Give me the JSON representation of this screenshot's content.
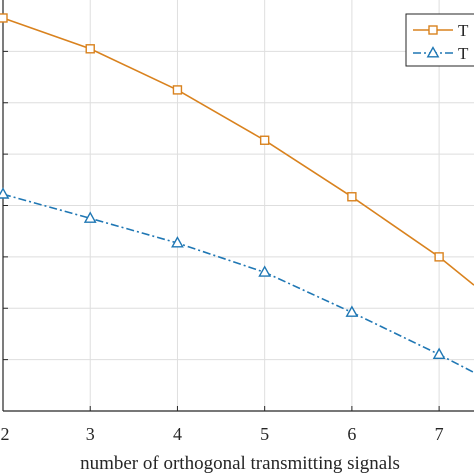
{
  "chart_data": {
    "type": "line",
    "xlabel": "number of orthogonal transmitting signals",
    "ylabel": "",
    "title": "",
    "xlim": [
      2,
      7.4
    ],
    "ylim": [
      0,
      8
    ],
    "x_ticks": [
      2,
      3,
      4,
      5,
      6,
      7
    ],
    "x_tick_labels": [
      "2",
      "3",
      "4",
      "5",
      "6",
      "7"
    ],
    "y_gridlines": [
      1,
      2,
      3,
      4,
      5,
      6,
      7
    ],
    "grid": true,
    "legend_position": "top-right",
    "series": [
      {
        "name": "T",
        "color": "#D9821E",
        "marker": "square",
        "line_style": "solid",
        "x": [
          2,
          3,
          4,
          5,
          6,
          7,
          7.4
        ],
        "y": [
          7.65,
          7.05,
          6.25,
          5.27,
          4.17,
          3.0,
          2.45
        ]
      },
      {
        "name": "T",
        "color": "#1F77B4",
        "marker": "triangle",
        "line_style": "dashdot",
        "x": [
          2,
          3,
          4,
          5,
          6,
          7,
          7.4
        ],
        "y": [
          4.22,
          3.75,
          3.27,
          2.7,
          1.92,
          1.1,
          0.75
        ]
      }
    ]
  }
}
